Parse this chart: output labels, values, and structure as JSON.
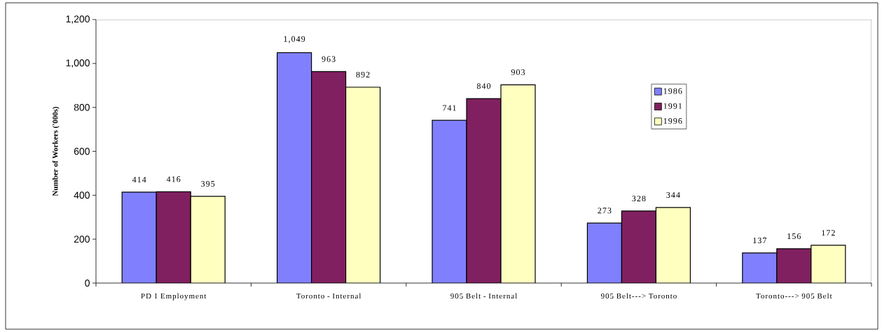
{
  "chart_data": {
    "type": "bar",
    "ylabel": "Number of Workers ('000s)",
    "categories": [
      "PD 1 Employment",
      "Toronto - Internal",
      "905 Belt - Internal",
      "905 Belt---> Toronto",
      "Toronto---> 905 Belt"
    ],
    "series": [
      {
        "name": "1986",
        "color": "#8080ff",
        "values": [
          414,
          1049,
          741,
          273,
          137
        ],
        "value_labels": [
          "414",
          "1,049",
          "741",
          "273",
          "137"
        ]
      },
      {
        "name": "1991",
        "color": "#802060",
        "values": [
          416,
          963,
          840,
          328,
          156
        ],
        "value_labels": [
          "416",
          "963",
          "840",
          "328",
          "156"
        ]
      },
      {
        "name": "1996",
        "color": "#ffffc0",
        "values": [
          395,
          892,
          903,
          344,
          172
        ],
        "value_labels": [
          "395",
          "892",
          "903",
          "344",
          "172"
        ]
      }
    ],
    "ylim": [
      0,
      1200
    ],
    "yticks": [
      0,
      200,
      400,
      600,
      800,
      {
        "value": 1000,
        "label": "1,000"
      },
      {
        "value": 1200,
        "label": "1,200"
      }
    ],
    "legend": "right",
    "grid": false
  }
}
